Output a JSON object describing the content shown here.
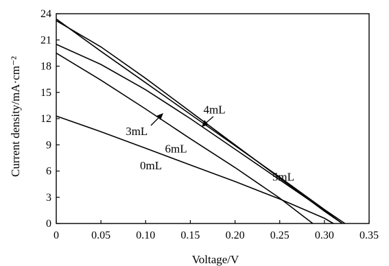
{
  "chart_data": {
    "type": "line",
    "xlabel": "Voltage/V",
    "ylabel": "Current density/mA·cm⁻²",
    "xlim": [
      0,
      0.35
    ],
    "ylim": [
      0,
      24
    ],
    "xticks": [
      "0",
      "0.05",
      "0.10",
      "0.15",
      "0.20",
      "0.25",
      "0.30",
      "0.35"
    ],
    "yticks": [
      "0",
      "3",
      "6",
      "9",
      "12",
      "15",
      "18",
      "21",
      "24"
    ],
    "grid": false,
    "series": [
      {
        "name": "0mL",
        "x": [
          0,
          0.05,
          0.1,
          0.15,
          0.2,
          0.25,
          0.3,
          0.31
        ],
        "y": [
          12.3,
          10.5,
          8.6,
          6.7,
          4.8,
          2.8,
          0.6,
          0
        ]
      },
      {
        "name": "3mL",
        "x": [
          0,
          0.05,
          0.1,
          0.15,
          0.2,
          0.25,
          0.3,
          0.32
        ],
        "y": [
          20.5,
          18.2,
          15.3,
          12.0,
          8.5,
          5.0,
          1.5,
          0
        ]
      },
      {
        "name": "4mL",
        "x": [
          0,
          0.05,
          0.1,
          0.15,
          0.2,
          0.25,
          0.3,
          0.32
        ],
        "y": [
          23.2,
          20.2,
          16.6,
          12.8,
          9.0,
          5.2,
          1.4,
          0
        ]
      },
      {
        "name": "5mL",
        "x": [
          0,
          0.05,
          0.1,
          0.15,
          0.2,
          0.25,
          0.3,
          0.323
        ],
        "y": [
          23.4,
          19.7,
          16.1,
          12.5,
          8.9,
          5.3,
          1.6,
          0
        ]
      },
      {
        "name": "6mL",
        "x": [
          0,
          0.05,
          0.1,
          0.15,
          0.2,
          0.25,
          0.287
        ],
        "y": [
          19.5,
          16.4,
          13.1,
          9.7,
          6.4,
          2.9,
          0
        ]
      }
    ],
    "annotations": [
      {
        "text": "4mL",
        "x": 0.177,
        "y": 12.6
      },
      {
        "text": "3mL",
        "x": 0.09,
        "y": 10.1
      },
      {
        "text": "6mL",
        "x": 0.134,
        "y": 8.1
      },
      {
        "text": "0mL",
        "x": 0.106,
        "y": 6.2
      },
      {
        "text": "5mL",
        "x": 0.254,
        "y": 4.9
      }
    ]
  }
}
